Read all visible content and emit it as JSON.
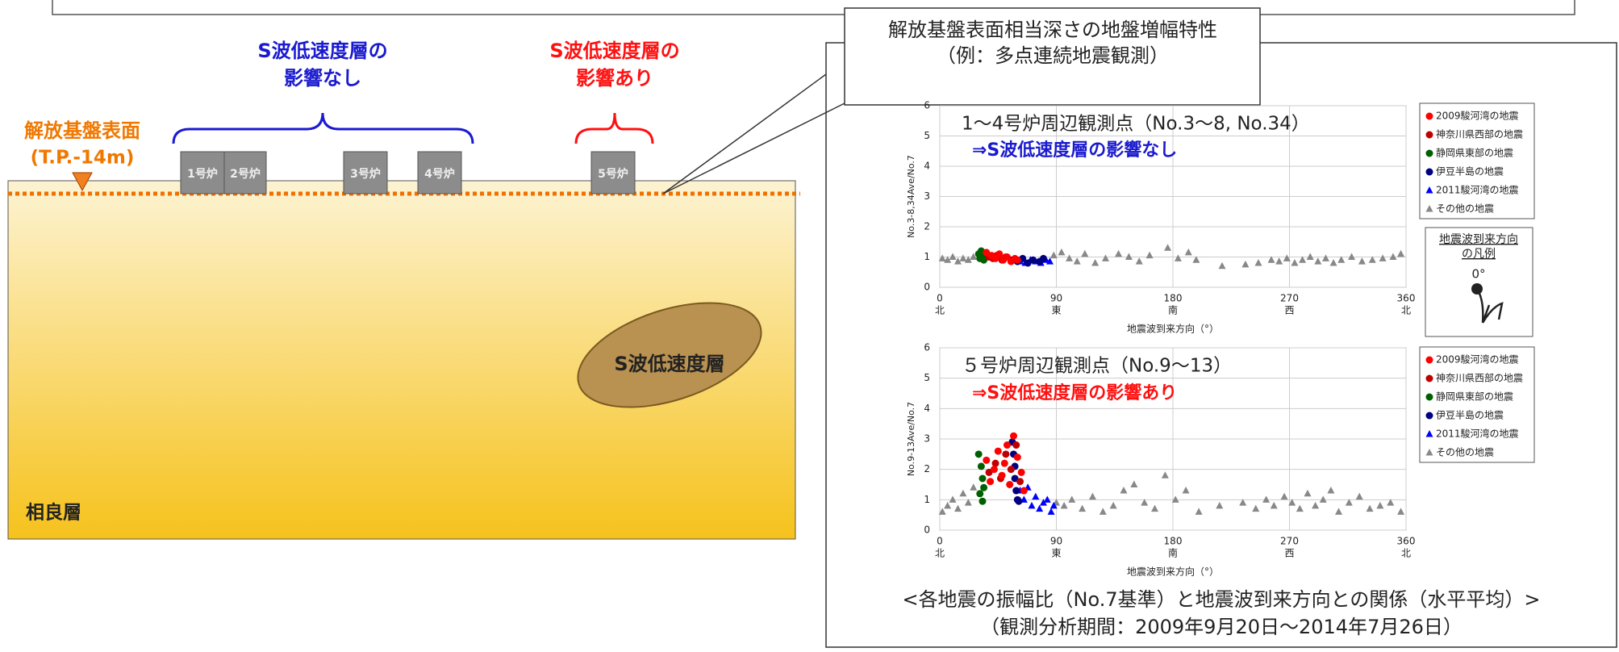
{
  "diagram": {
    "left": {
      "blue_label": [
        "S波低速度層の",
        "影響なし"
      ],
      "red_label": [
        "S波低速度層の",
        "影響あり"
      ],
      "base_label": [
        "解放基盤表面",
        "(T.P.-14m)"
      ],
      "reactors": [
        "1号炉",
        "2号炉",
        "3号炉",
        "4号炉",
        "5号炉"
      ],
      "low_velocity_layer": "S波低速度層",
      "stratum": "相良層"
    },
    "callout": [
      "解放基盤表面相当深さの地盤増幅特性",
      "（例：多点連続地震観測）"
    ],
    "caption": [
      "<各地震の振幅比（No.7基準）と地震波到来方向との関係（水平平均）>",
      "（観測分析期間：2009年9月20日～2014年7月26日）"
    ],
    "direction_legend": [
      "地震波到来方向",
      "の凡例",
      "0°"
    ]
  },
  "chart_data": [
    {
      "type": "scatter",
      "title": "1～4号炉周辺観測点（No.3～8, No.34）",
      "subtitle": "⇒S波低速度層の影響なし",
      "subtitle_color": "#1a1ad0",
      "ylabel": "No.3-8,34Ave/No.7",
      "xlabel": "地震波到来方向（°）",
      "xlim": [
        0,
        360
      ],
      "ylim": [
        0,
        6
      ],
      "xticks": [
        0,
        90,
        180,
        270,
        360
      ],
      "xtick_directions": [
        "北",
        "東",
        "南",
        "西",
        "北"
      ],
      "yticks": [
        0,
        1,
        2,
        3,
        4,
        5,
        6
      ],
      "grid": true,
      "series": [
        {
          "name": "2009駿河湾の地震",
          "color": "#ff0000",
          "marker": "circle",
          "x": [
            36,
            40,
            43,
            46,
            49,
            52,
            55,
            58,
            60
          ],
          "values": [
            1.15,
            1.05,
            0.95,
            1.1,
            0.9,
            1.0,
            0.85,
            0.95,
            0.9
          ]
        },
        {
          "name": "神奈川県西部の地震",
          "color": "#c00000",
          "marker": "circle",
          "x": [
            38,
            41,
            44,
            48,
            51
          ],
          "values": [
            1.0,
            0.95,
            1.05,
            0.9,
            1.0
          ]
        },
        {
          "name": "静岡県東部の地震",
          "color": "#006000",
          "marker": "circle",
          "x": [
            30,
            31,
            32,
            33,
            34
          ],
          "values": [
            1.1,
            0.95,
            1.2,
            1.0,
            0.9
          ]
        },
        {
          "name": "伊豆半島の地震",
          "color": "#000080",
          "marker": "circle",
          "x": [
            56,
            60,
            64,
            68,
            72,
            77,
            80
          ],
          "values": [
            0.9,
            0.85,
            0.95,
            0.8,
            0.9,
            0.85,
            0.95
          ]
        },
        {
          "name": "2011駿河湾の地震",
          "color": "#0000ff",
          "marker": "triangle",
          "x": [
            62,
            66,
            70,
            74,
            78,
            82,
            85
          ],
          "values": [
            0.85,
            0.8,
            0.9,
            0.85,
            0.8,
            0.9,
            0.85
          ]
        },
        {
          "name": "その他の地震",
          "color": "#888888",
          "marker": "triangle",
          "x": [
            2,
            6,
            10,
            14,
            18,
            22,
            26,
            88,
            94,
            100,
            106,
            112,
            120,
            128,
            138,
            146,
            154,
            162,
            176,
            184,
            192,
            198,
            218,
            236,
            246,
            256,
            262,
            268,
            274,
            280,
            286,
            292,
            298,
            304,
            310,
            318,
            326,
            334,
            342,
            350,
            356
          ],
          "values": [
            0.95,
            0.9,
            1.0,
            0.85,
            0.95,
            0.9,
            1.0,
            1.05,
            1.15,
            0.95,
            0.85,
            1.1,
            0.8,
            0.95,
            1.1,
            1.0,
            0.85,
            1.05,
            1.3,
            0.95,
            1.15,
            0.9,
            0.7,
            0.75,
            0.8,
            0.9,
            0.85,
            0.95,
            0.8,
            0.9,
            1.0,
            0.85,
            0.95,
            0.8,
            0.9,
            1.0,
            0.85,
            0.9,
            0.95,
            1.0,
            1.1
          ]
        }
      ]
    },
    {
      "type": "scatter",
      "title": "５号炉周辺観測点（No.9～13）",
      "subtitle": "⇒S波低速度層の影響あり",
      "subtitle_color": "#ff1010",
      "ylabel": "No.9-13Ave/No.7",
      "xlabel": "地震波到来方向（°）",
      "xlim": [
        0,
        360
      ],
      "ylim": [
        0,
        6
      ],
      "xticks": [
        0,
        90,
        180,
        270,
        360
      ],
      "xtick_directions": [
        "北",
        "東",
        "南",
        "西",
        "北"
      ],
      "yticks": [
        0,
        1,
        2,
        3,
        4,
        5,
        6
      ],
      "grid": true,
      "series": [
        {
          "name": "2009駿河湾の地震",
          "color": "#ff0000",
          "marker": "circle",
          "x": [
            36,
            39,
            42,
            45,
            48,
            50,
            52,
            54,
            57,
            60,
            63,
            65
          ],
          "values": [
            2.3,
            1.6,
            2.0,
            2.6,
            1.8,
            2.2,
            2.8,
            1.5,
            3.1,
            2.4,
            1.9,
            1.3
          ]
        },
        {
          "name": "神奈川県西部の地震",
          "color": "#c00000",
          "marker": "circle",
          "x": [
            38,
            43,
            47,
            51,
            55,
            59,
            62
          ],
          "values": [
            1.9,
            2.2,
            1.7,
            2.5,
            2.0,
            2.8,
            1.6
          ]
        },
        {
          "name": "静岡県東部の地震",
          "color": "#006000",
          "marker": "circle",
          "x": [
            30,
            31,
            32,
            33,
            33,
            34
          ],
          "values": [
            2.5,
            1.2,
            2.1,
            0.95,
            1.7,
            1.4
          ]
        },
        {
          "name": "伊豆半島の地震",
          "color": "#000080",
          "marker": "circle",
          "x": [
            56,
            57,
            58,
            58,
            59,
            60,
            61
          ],
          "values": [
            2.9,
            2.5,
            2.1,
            1.7,
            1.3,
            1.0,
            0.95
          ]
        },
        {
          "name": "2011駿河湾の地震",
          "color": "#0000ff",
          "marker": "triangle",
          "x": [
            62,
            65,
            68,
            71,
            74,
            77,
            80,
            83,
            86,
            88
          ],
          "values": [
            1.3,
            1.0,
            1.4,
            0.8,
            1.1,
            0.7,
            0.9,
            1.0,
            0.6,
            0.8
          ]
        },
        {
          "name": "その他の地震",
          "color": "#888888",
          "marker": "triangle",
          "x": [
            2,
            6,
            10,
            14,
            18,
            22,
            26,
            90,
            96,
            102,
            110,
            118,
            126,
            134,
            142,
            150,
            158,
            166,
            174,
            182,
            190,
            200,
            216,
            234,
            244,
            252,
            258,
            266,
            272,
            278,
            284,
            290,
            296,
            302,
            308,
            316,
            324,
            332,
            340,
            348,
            356
          ],
          "values": [
            0.6,
            0.8,
            1.0,
            0.7,
            1.2,
            0.9,
            1.4,
            0.9,
            0.8,
            1.0,
            0.7,
            1.1,
            0.6,
            0.8,
            1.3,
            1.5,
            0.9,
            0.7,
            1.8,
            1.0,
            1.3,
            0.6,
            0.8,
            0.9,
            0.7,
            1.0,
            0.8,
            1.1,
            0.9,
            0.7,
            1.2,
            0.8,
            1.0,
            1.3,
            0.6,
            0.9,
            1.1,
            0.7,
            0.8,
            0.9,
            0.6
          ]
        }
      ]
    }
  ]
}
